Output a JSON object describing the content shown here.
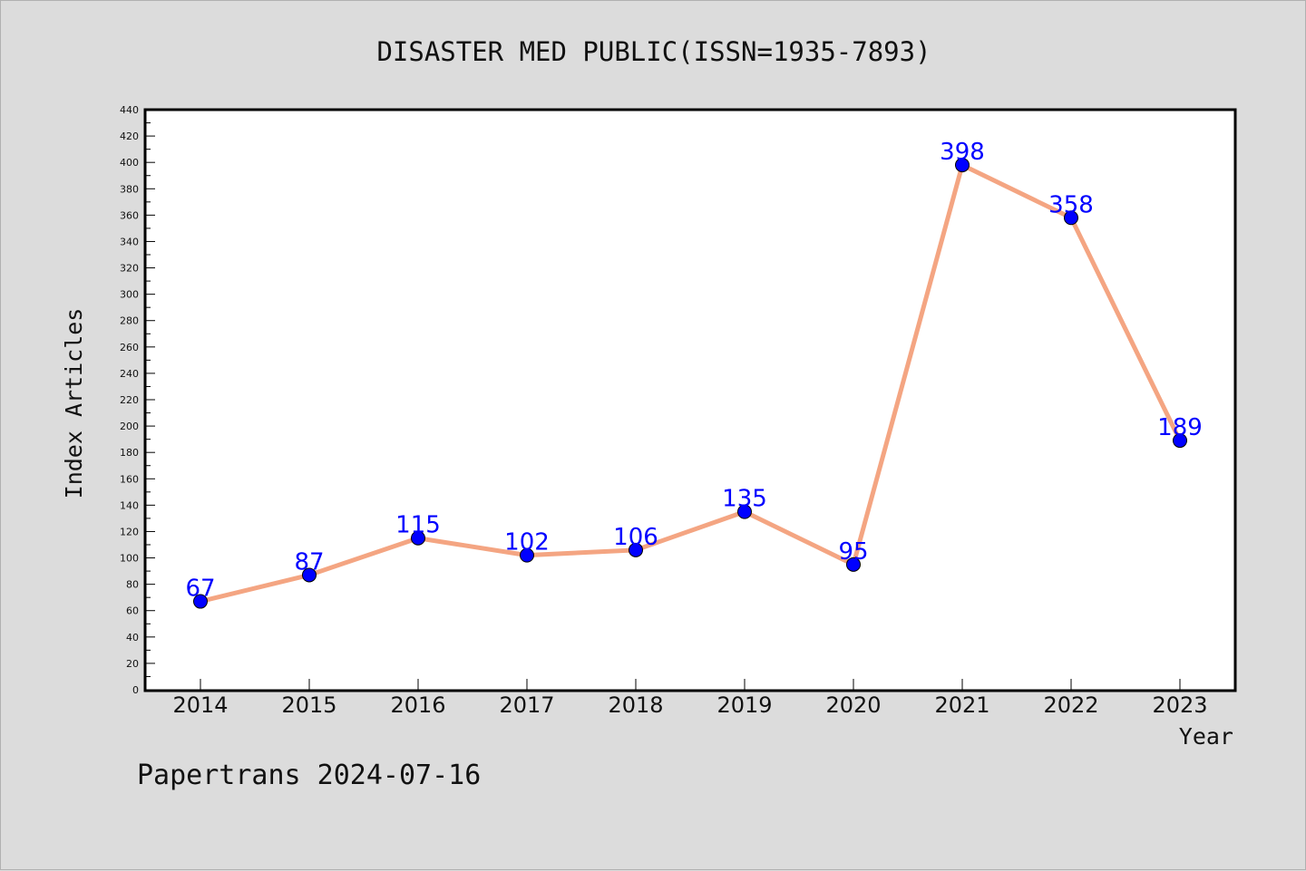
{
  "chart_data": {
    "type": "line",
    "title": "DISASTER MED PUBLIC(ISSN=1935-7893)",
    "xlabel": "Year",
    "ylabel": "Index Articles",
    "categories": [
      "2014",
      "2015",
      "2016",
      "2017",
      "2018",
      "2019",
      "2020",
      "2021",
      "2022",
      "2023"
    ],
    "values": [
      67,
      87,
      115,
      102,
      106,
      135,
      95,
      398,
      358,
      189
    ],
    "ylim": [
      0,
      440
    ],
    "ytick_step": 20,
    "grid": false,
    "data_labels": true
  },
  "footer": "Papertrans 2024-07-16",
  "colors": {
    "background": "#dcdcdc",
    "plot_background": "#ffffff",
    "line": "#f4a582",
    "marker": "#0000ff",
    "data_label": "#0000ff"
  }
}
